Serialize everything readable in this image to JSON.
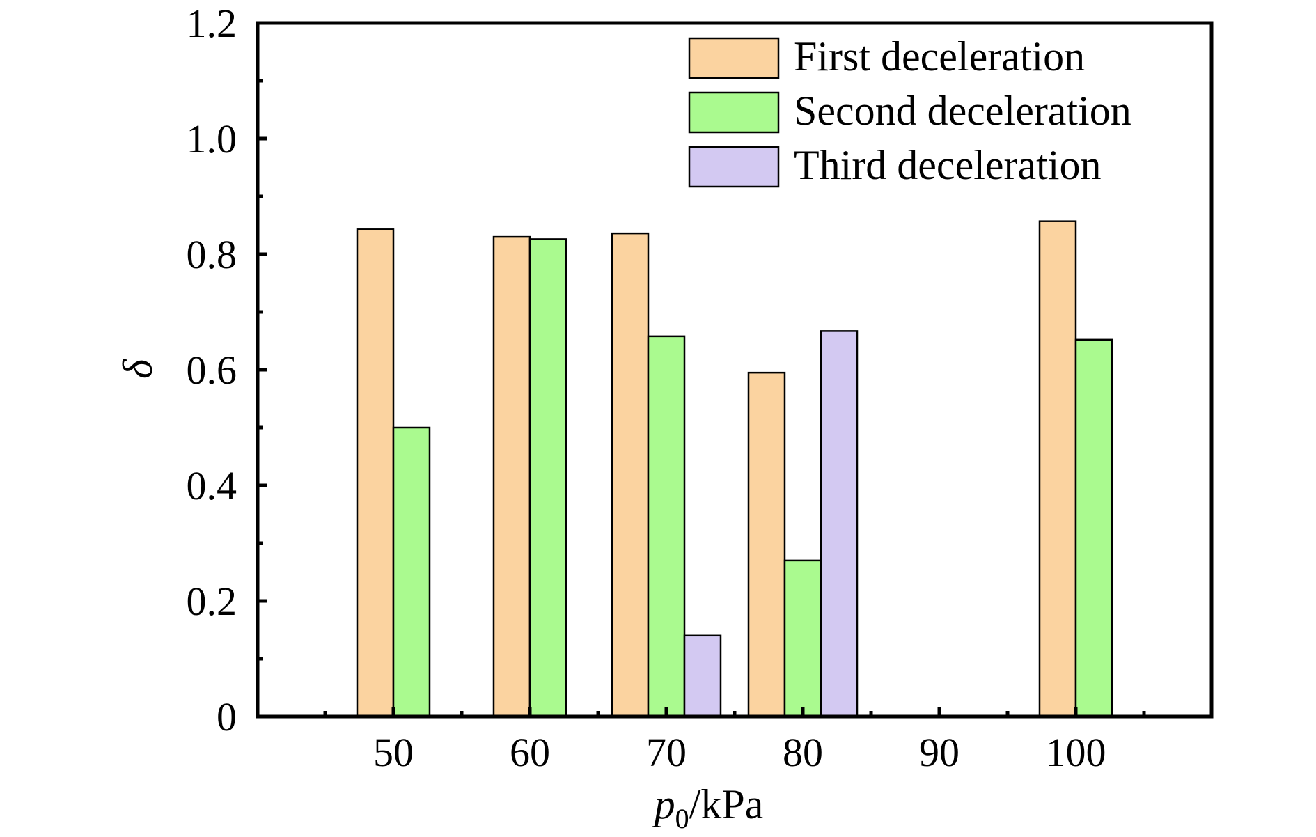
{
  "chart_data": {
    "type": "bar",
    "categories": [
      "50",
      "60",
      "70",
      "80",
      "90",
      "100"
    ],
    "series": [
      {
        "name": "First deceleration",
        "color": "#fbd3a0",
        "values": [
          0.843,
          0.83,
          0.836,
          0.595,
          null,
          0.857
        ]
      },
      {
        "name": "Second deceleration",
        "color": "#aafa8f",
        "values": [
          0.5,
          0.826,
          0.658,
          0.27,
          null,
          0.652
        ]
      },
      {
        "name": "Third deceleration",
        "color": "#d3c9f2",
        "values": [
          null,
          null,
          0.14,
          0.667,
          null,
          null
        ]
      }
    ],
    "xlabel": {
      "main": "p",
      "sub": "0",
      "unit": "/kPa"
    },
    "ylabel": "δ",
    "ylim": [
      0,
      1.2
    ],
    "yticks": [
      "0",
      "0.2",
      "0.4",
      "0.6",
      "0.8",
      "1.0",
      "1.2"
    ],
    "grid": false,
    "legend_position": "top-right"
  }
}
